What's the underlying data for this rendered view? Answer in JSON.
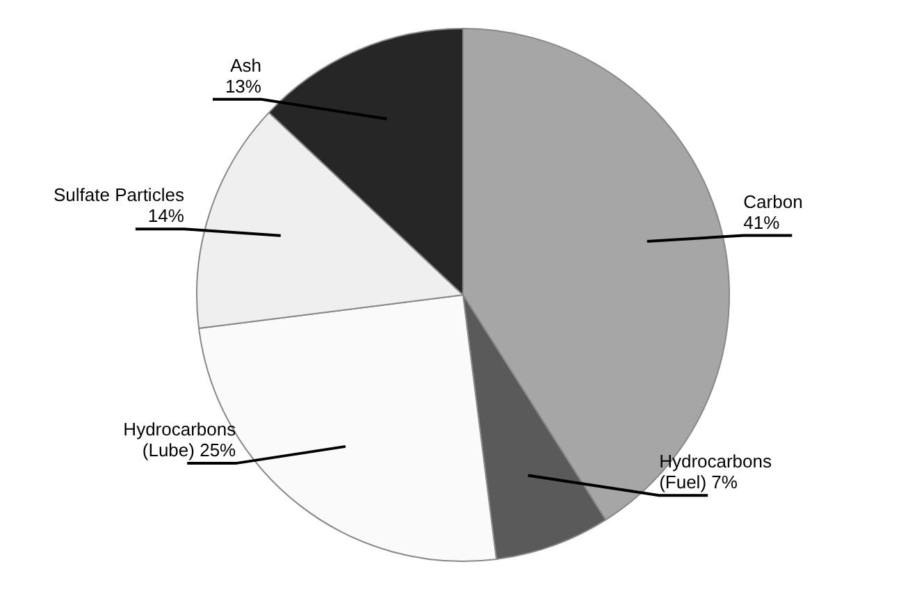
{
  "chart_data": {
    "type": "pie",
    "categories": [
      "Carbon",
      "Hydrocarbons (Fuel)",
      "Hydrocarbons (Lube)",
      "Sulfate Particles",
      "Ash"
    ],
    "values": [
      41,
      7,
      25,
      14,
      13
    ],
    "colors": [
      "#a6a6a6",
      "#5a5a5a",
      "#fafafa",
      "#efefef",
      "#262626"
    ],
    "value_labels": [
      "41%",
      "7%",
      "25%",
      "14%",
      "13%"
    ],
    "legend": false
  }
}
